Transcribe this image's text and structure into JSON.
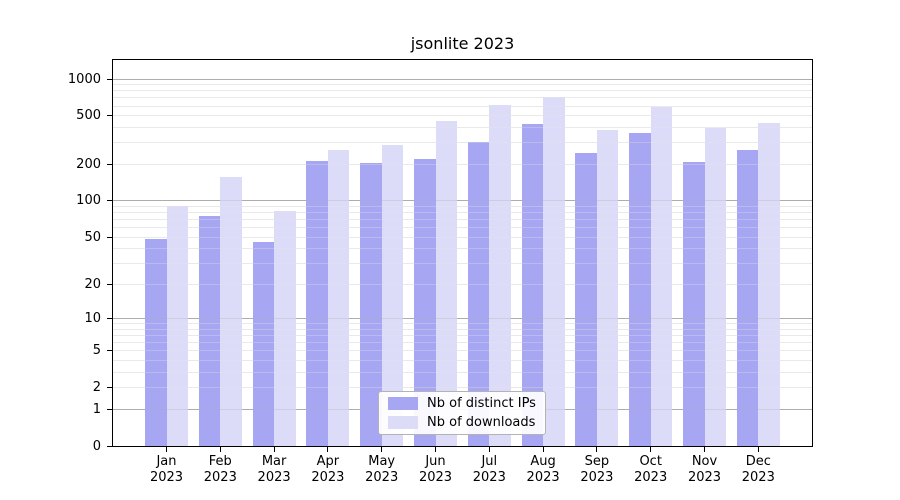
{
  "title": "jsonlite 2023",
  "chart_data": {
    "type": "bar",
    "title": "jsonlite 2023",
    "categories": [
      "Jan 2023",
      "Feb 2023",
      "Mar 2023",
      "Apr 2023",
      "May 2023",
      "Jun 2023",
      "Jul 2023",
      "Aug 2023",
      "Sep 2023",
      "Oct 2023",
      "Nov 2023",
      "Dec 2023"
    ],
    "series": [
      {
        "name": "Nb of distinct IPs",
        "color": "#a6a6f2",
        "values": [
          48,
          75,
          46,
          213,
          205,
          221,
          303,
          428,
          248,
          362,
          209,
          262
        ]
      },
      {
        "name": "Nb of downloads",
        "color": "#dcdcf9",
        "values": [
          91,
          157,
          82,
          262,
          288,
          452,
          613,
          714,
          382,
          590,
          397,
          437
        ]
      }
    ],
    "xlabel": "",
    "ylabel": "",
    "yscale": "log10(value+1)",
    "yticks": [
      1000,
      500,
      200,
      100,
      50,
      20,
      10,
      5,
      2,
      1,
      0
    ],
    "ylim": [
      0,
      1430
    ],
    "grid": {
      "horizontal": true,
      "major_at": [
        1,
        10,
        100,
        1000
      ],
      "minor_decades": [
        1,
        10,
        100
      ],
      "vertical": false
    },
    "legend_position": "lower center"
  },
  "colors": {
    "background": "#ffffff",
    "bar_distinct_ips": "#a6a6f2",
    "bar_downloads": "#dcdcf9",
    "grid_major": "#adadad",
    "grid_minor": "#e9e9e9",
    "axis": "#000000",
    "legend_border": "#b3b3b3",
    "text": "#000000"
  }
}
